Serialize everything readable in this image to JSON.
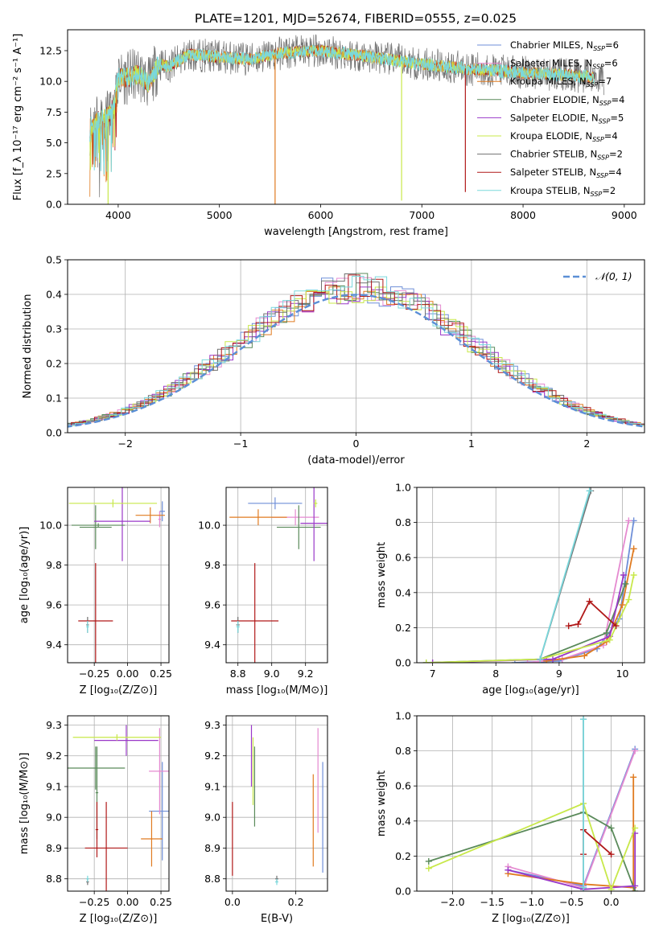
{
  "figure_title": "PLATE=1201, MJD=52674, FIBERID=0555, z=0.025",
  "colors": {
    "Chabrier MILES": "#6f8fd8",
    "Salpeter MILES": "#e58ad0",
    "Kroupa MILES": "#e07b20",
    "Chabrier ELODIE": "#5a8a5a",
    "Salpeter ELODIE": "#9a38c8",
    "Kroupa ELODIE": "#c8e84a",
    "Chabrier STELIB": "#707070",
    "Salpeter STELIB": "#b01818",
    "Kroupa STELIB": "#7ad8dc",
    "gauss": "#5b8fd6"
  },
  "chart_data": [
    {
      "type": "line",
      "panel": "spectrum",
      "xlabel": "wavelength [Angstrom, rest frame]",
      "ylabel": "Flux [f_λ 10⁻¹⁷ erg cm⁻² s⁻¹ A⁻¹]",
      "xlim": [
        3500,
        9200
      ],
      "ylim": [
        0,
        14.2
      ],
      "xticks": [
        4000,
        5000,
        6000,
        7000,
        8000,
        9000
      ],
      "yticks": [
        0.0,
        2.5,
        5.0,
        7.5,
        10.0,
        12.5
      ],
      "legend_position": "upper right",
      "legend": [
        {
          "text": "Chabrier MILES, N",
          "sub": "SSP",
          "tail": "=6"
        },
        {
          "text": "Salpeter MILES, N",
          "sub": "SSP",
          "tail": "=6"
        },
        {
          "text": "Kroupa MILES, N",
          "sub": "SSP",
          "tail": "=7"
        },
        {
          "text": "Chabrier ELODIE, N",
          "sub": "SSP",
          "tail": "=4"
        },
        {
          "text": "Salpeter ELODIE, N",
          "sub": "SSP",
          "tail": "=5"
        },
        {
          "text": "Kroupa ELODIE, N",
          "sub": "SSP",
          "tail": "=4"
        },
        {
          "text": "Chabrier STELIB, N",
          "sub": "SSP",
          "tail": "=2"
        },
        {
          "text": "Salpeter STELIB, N",
          "sub": "SSP",
          "tail": "=4"
        },
        {
          "text": "Kroupa STELIB, N",
          "sub": "SSP",
          "tail": "=2"
        }
      ],
      "continuum": {
        "x": [
          3720,
          3800,
          3900,
          3950,
          4000,
          4100,
          4200,
          4300,
          4400,
          4500,
          4700,
          5000,
          5300,
          5600,
          6000,
          6500,
          7000,
          7500,
          8000,
          8500,
          8800
        ],
        "y": [
          6.2,
          6.8,
          7.2,
          7.8,
          10.3,
          10.3,
          10.6,
          9.8,
          11.4,
          11.2,
          12.2,
          12.0,
          11.8,
          12.3,
          12.5,
          12.0,
          11.4,
          11.0,
          10.7,
          10.5,
          10.2
        ]
      },
      "spikes": [
        {
          "series": "Kroupa ELODIE",
          "x": 3900,
          "y": 0.0
        },
        {
          "series": "Kroupa MILES",
          "x": 5550,
          "y": 0.0
        },
        {
          "series": "Kroupa ELODIE",
          "x": 6800,
          "y": 0.3
        },
        {
          "series": "Salpeter STELIB",
          "x": 7430,
          "y": 1.0
        }
      ]
    },
    {
      "type": "step",
      "panel": "residuals",
      "xlabel": "(data-model)/error",
      "ylabel": "Normed distribution",
      "xlim": [
        -2.5,
        2.5
      ],
      "ylim": [
        0,
        0.5
      ],
      "xticks": [
        -2,
        -1,
        0,
        1,
        2
      ],
      "yticks": [
        0.0,
        0.1,
        0.2,
        0.3,
        0.4,
        0.5
      ],
      "legend": {
        "text": "𝒩(0, 1)",
        "position": "upper right"
      },
      "bin_width": 0.1,
      "gaussian": {
        "mu": 0,
        "sigma": 1
      }
    },
    {
      "type": "errorbar",
      "panel": "age-vs-Z",
      "xlabel": "Z [log₁₀(Z/Z⊙)]",
      "ylabel": "age  [log₁₀(age/yr)]",
      "xlim": [
        -0.45,
        0.31
      ],
      "ylim": [
        9.31,
        10.19
      ],
      "xticks": [
        -0.25,
        0.0,
        0.25
      ],
      "xticklabels": [
        "−0.25",
        "0.00",
        "0.25"
      ],
      "yticks": [
        9.4,
        9.6,
        9.8,
        10.0
      ],
      "points": [
        {
          "series": "Chabrier MILES",
          "x": 0.26,
          "y": 10.07,
          "xerr": 0.02,
          "yerr": 0.05
        },
        {
          "series": "Salpeter MILES",
          "x": 0.24,
          "y": 10.03,
          "xerr": 0.01,
          "yerr": 0.04
        },
        {
          "series": "Kroupa MILES",
          "x": 0.17,
          "y": 10.05,
          "xerr": 0.11,
          "yerr": 0.04
        },
        {
          "series": "Chabrier ELODIE",
          "x": -0.24,
          "y": 9.99,
          "xerr": 0.12,
          "yerr": 0.11
        },
        {
          "series": "Salpeter ELODIE",
          "x": -0.04,
          "y": 10.02,
          "xerr": 0.21,
          "yerr": 0.2
        },
        {
          "series": "Kroupa ELODIE",
          "x": -0.11,
          "y": 10.11,
          "xerr": 0.33,
          "yerr": 0.02
        },
        {
          "series": "Chabrier STELIB",
          "x": -0.3,
          "y": 9.5,
          "xerr": 0.01,
          "yerr": 0.04
        },
        {
          "series": "Salpeter STELIB",
          "x": -0.24,
          "y": 9.52,
          "xerr": 0.13,
          "yerr": 0.29
        },
        {
          "series": "Kroupa STELIB",
          "x": -0.3,
          "y": 9.49,
          "xerr": 0.01,
          "yerr": 0.03
        },
        {
          "series": "Chabrier ELODIE",
          "x": -0.22,
          "y": 10.0,
          "xerr": 0.2,
          "yerr": 0.01
        }
      ]
    },
    {
      "type": "errorbar",
      "panel": "age-vs-mass",
      "xlabel": "mass [log₁₀(M/M⊙)]",
      "ylabel": "",
      "xlim": [
        8.73,
        9.33
      ],
      "ylim": [
        9.31,
        10.19
      ],
      "xticks": [
        8.8,
        9.0,
        9.2
      ],
      "yticks": [
        9.4,
        9.6,
        9.8,
        10.0
      ],
      "points": [
        {
          "series": "Chabrier MILES",
          "x": 9.02,
          "y": 10.11,
          "xerr": 0.16,
          "yerr": 0.03
        },
        {
          "series": "Salpeter MILES",
          "x": 9.14,
          "y": 10.04,
          "xerr": 0.14,
          "yerr": 0.04
        },
        {
          "series": "Kroupa MILES",
          "x": 8.92,
          "y": 10.04,
          "xerr": 0.17,
          "yerr": 0.04
        },
        {
          "series": "Chabrier ELODIE",
          "x": 9.16,
          "y": 9.99,
          "xerr": 0.13,
          "yerr": 0.11
        },
        {
          "series": "Salpeter ELODIE",
          "x": 9.25,
          "y": 10.01,
          "xerr": 0.08,
          "yerr": 0.19
        },
        {
          "series": "Kroupa ELODIE",
          "x": 9.26,
          "y": 10.11,
          "xerr": 0.01,
          "yerr": 0.02
        },
        {
          "series": "Chabrier STELIB",
          "x": 8.8,
          "y": 9.5,
          "xerr": 0.01,
          "yerr": 0.04
        },
        {
          "series": "Salpeter STELIB",
          "x": 8.9,
          "y": 9.52,
          "xerr": 0.14,
          "yerr": 0.29
        },
        {
          "series": "Kroupa STELIB",
          "x": 8.8,
          "y": 9.49,
          "xerr": 0.01,
          "yerr": 0.03
        }
      ]
    },
    {
      "type": "line",
      "panel": "massweight-vs-age",
      "xlabel": "age  [log₁₀(age/yr)]",
      "ylabel": "mass weight",
      "xlim": [
        6.75,
        10.35
      ],
      "ylim": [
        0,
        1.0
      ],
      "xticks": [
        7,
        8,
        9,
        10
      ],
      "yticks": [
        0.0,
        0.2,
        0.4,
        0.6,
        0.8,
        1.0
      ],
      "series": [
        {
          "name": "Chabrier MILES",
          "x": [
            8.3,
            9.0,
            9.6,
            9.95,
            10.18
          ],
          "y": [
            0.0,
            0.01,
            0.08,
            0.25,
            0.81
          ]
        },
        {
          "name": "Salpeter MILES",
          "x": [
            8.5,
            9.05,
            9.7,
            10.1
          ],
          "y": [
            0.0,
            0.02,
            0.1,
            0.81
          ]
        },
        {
          "name": "Kroupa MILES",
          "x": [
            8.8,
            9.4,
            9.75,
            10.0,
            10.18
          ],
          "y": [
            0.01,
            0.04,
            0.12,
            0.33,
            0.65
          ]
        },
        {
          "name": "Chabrier ELODIE",
          "x": [
            6.9,
            8.7,
            9.75,
            10.05
          ],
          "y": [
            0.0,
            0.02,
            0.17,
            0.45
          ]
        },
        {
          "name": "Salpeter ELODIE",
          "x": [
            7.0,
            8.9,
            9.8,
            10.02
          ],
          "y": [
            0.0,
            0.02,
            0.15,
            0.5
          ]
        },
        {
          "name": "Kroupa ELODIE",
          "x": [
            6.9,
            8.7,
            9.8,
            10.1,
            10.18
          ],
          "y": [
            0.0,
            0.02,
            0.13,
            0.36,
            0.5
          ]
        },
        {
          "name": "Chabrier STELIB",
          "x": [
            8.7,
            9.5
          ],
          "y": [
            0.02,
            0.98
          ]
        },
        {
          "name": "Salpeter STELIB",
          "x": [
            9.15,
            9.3,
            9.48,
            9.9
          ],
          "y": [
            0.21,
            0.22,
            0.35,
            0.21
          ]
        },
        {
          "name": "Kroupa STELIB",
          "x": [
            8.7,
            9.48
          ],
          "y": [
            0.02,
            0.98
          ]
        }
      ]
    },
    {
      "type": "errorbar",
      "panel": "mass-vs-Z",
      "xlabel": "Z [log₁₀(Z/Z⊙)]",
      "ylabel": "mass [log₁₀(M/M⊙)]",
      "xlim": [
        -0.45,
        0.31
      ],
      "ylim": [
        8.76,
        9.33
      ],
      "xticks": [
        -0.25,
        0.0,
        0.25
      ],
      "xticklabels": [
        "−0.25",
        "0.00",
        "0.25"
      ],
      "yticks": [
        8.8,
        8.9,
        9.0,
        9.1,
        9.2,
        9.3
      ],
      "points": [
        {
          "series": "Chabrier MILES",
          "x": 0.26,
          "y": 9.02,
          "xerr": 0.1,
          "yerr": 0.16
        },
        {
          "series": "Salpeter MILES",
          "x": 0.24,
          "y": 9.15,
          "xerr": 0.08,
          "yerr": 0.14
        },
        {
          "series": "Kroupa MILES",
          "x": 0.18,
          "y": 8.93,
          "xerr": 0.08,
          "yerr": 0.09
        },
        {
          "series": "Chabrier ELODIE",
          "x": -0.24,
          "y": 9.16,
          "xerr": 0.22,
          "yerr": 0.07
        },
        {
          "series": "Salpeter ELODIE",
          "x": -0.01,
          "y": 9.25,
          "xerr": 0.24,
          "yerr": 0.05
        },
        {
          "series": "Kroupa ELODIE",
          "x": -0.08,
          "y": 9.26,
          "xerr": 0.33,
          "yerr": 0.01
        },
        {
          "series": "Chabrier STELIB",
          "x": -0.3,
          "y": 8.79,
          "xerr": 0.01,
          "yerr": 0.01
        },
        {
          "series": "Salpeter STELIB",
          "x": -0.16,
          "y": 8.9,
          "xerr": 0.16,
          "yerr": 0.15
        },
        {
          "series": "Kroupa STELIB",
          "x": -0.3,
          "y": 8.8,
          "xerr": 0.01,
          "yerr": 0.01
        },
        {
          "series": "Chabrier ELODIE",
          "x": -0.23,
          "y": 9.08,
          "xerr": 0.01,
          "yerr": 0.15
        },
        {
          "series": "Salpeter STELIB",
          "x": -0.23,
          "y": 8.96,
          "xerr": 0.01,
          "yerr": 0.09
        }
      ]
    },
    {
      "type": "errorbar",
      "panel": "mass-vs-EBV",
      "xlabel": "E(B-V)",
      "ylabel": "",
      "xlim": [
        -0.02,
        0.3
      ],
      "ylim": [
        8.76,
        9.33
      ],
      "xticks": [
        0.0,
        0.2
      ],
      "yticks": [
        8.8,
        8.9,
        9.0,
        9.1,
        9.2,
        9.3
      ],
      "points": [
        {
          "series": "Chabrier MILES",
          "x": 0.285,
          "y": 9.0,
          "xerr": 0.0,
          "yerr": 0.18
        },
        {
          "series": "Salpeter MILES",
          "x": 0.27,
          "y": 9.12,
          "xerr": 0.0,
          "yerr": 0.17
        },
        {
          "series": "Kroupa MILES",
          "x": 0.255,
          "y": 8.99,
          "xerr": 0.0,
          "yerr": 0.15
        },
        {
          "series": "Chabrier ELODIE",
          "x": 0.07,
          "y": 9.1,
          "xerr": 0.0,
          "yerr": 0.13
        },
        {
          "series": "Salpeter ELODIE",
          "x": 0.06,
          "y": 9.2,
          "xerr": 0.0,
          "yerr": 0.1
        },
        {
          "series": "Kroupa ELODIE",
          "x": 0.065,
          "y": 9.15,
          "xerr": 0.0,
          "yerr": 0.11
        },
        {
          "series": "Chabrier STELIB",
          "x": 0.14,
          "y": 8.8,
          "xerr": 0.005,
          "yerr": 0.01
        },
        {
          "series": "Salpeter STELIB",
          "x": 0.0,
          "y": 8.93,
          "xerr": 0.0,
          "yerr": 0.12
        },
        {
          "series": "Kroupa STELIB",
          "x": 0.14,
          "y": 8.79,
          "xerr": 0.005,
          "yerr": 0.01
        }
      ]
    },
    {
      "type": "line",
      "panel": "massweight-vs-Z",
      "xlabel": "Z [log₁₀(Z/Z⊙)]",
      "ylabel": "mass weight",
      "xlim": [
        -2.45,
        0.42
      ],
      "ylim": [
        0,
        1.0
      ],
      "xticks": [
        -2.0,
        -1.5,
        -1.0,
        -0.5,
        0.0
      ],
      "xticklabels": [
        "−2.0",
        "−1.5",
        "−1.0",
        "−0.5",
        "0.0"
      ],
      "yticks": [
        0.0,
        0.2,
        0.4,
        0.6,
        0.8,
        1.0
      ],
      "series": [
        {
          "name": "Chabrier MILES",
          "x": [
            -1.3,
            -0.35,
            0.3
          ],
          "y": [
            0.12,
            0.03,
            0.81
          ]
        },
        {
          "name": "Salpeter MILES",
          "x": [
            -1.3,
            -0.35,
            0.3
          ],
          "y": [
            0.14,
            0.02,
            0.8
          ]
        },
        {
          "name": "Kroupa MILES",
          "x": [
            -1.3,
            -0.35,
            0.28,
            0.28
          ],
          "y": [
            0.1,
            0.04,
            0.02,
            0.65
          ]
        },
        {
          "name": "Chabrier ELODIE",
          "x": [
            -2.3,
            -0.35,
            0.0,
            0.3
          ],
          "y": [
            0.17,
            0.45,
            0.36,
            0.0
          ]
        },
        {
          "name": "Salpeter ELODIE",
          "x": [
            -1.3,
            -0.35,
            0.3,
            0.3
          ],
          "y": [
            0.12,
            0.01,
            0.03,
            0.33
          ]
        },
        {
          "name": "Kroupa ELODIE",
          "x": [
            -2.3,
            -0.35,
            0.0,
            0.3
          ],
          "y": [
            0.13,
            0.5,
            0.01,
            0.36
          ]
        },
        {
          "name": "Chabrier STELIB",
          "x": [
            -0.35,
            -0.35
          ],
          "y": [
            0.02,
            0.98
          ]
        },
        {
          "name": "Salpeter STELIB",
          "x": [
            -0.35,
            -0.35,
            0.0
          ],
          "y": [
            0.21,
            0.35,
            0.21
          ]
        },
        {
          "name": "Kroupa STELIB",
          "x": [
            -0.35,
            -0.35
          ],
          "y": [
            0.02,
            0.98
          ]
        }
      ]
    }
  ]
}
